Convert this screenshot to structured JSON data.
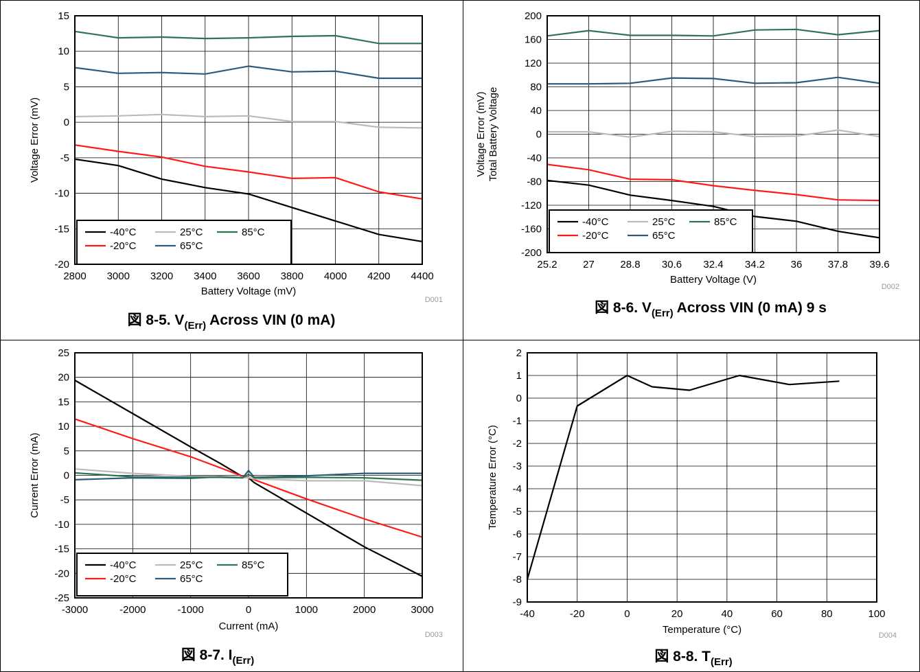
{
  "chart_data": [
    {
      "type": "line",
      "caption_prefix": "図 8-5. V",
      "caption_sub": "(Err)",
      "caption_suffix": " Across VIN (0 mA)",
      "code": "D001",
      "xlabel": "Battery Voltage (mV)",
      "ylabel": [
        "Voltage Error (mV)"
      ],
      "xlim": [
        2800,
        4400
      ],
      "ylim": [
        -20,
        15
      ],
      "xticks": [
        2800,
        3000,
        3200,
        3400,
        3600,
        3800,
        4000,
        4200,
        4400
      ],
      "xtick_labels": [
        "2800",
        "3000",
        "3200",
        "3400",
        "3600",
        "3800",
        "4000",
        "4200",
        "4400"
      ],
      "yticks": [
        -20,
        -15,
        -10,
        -5,
        0,
        5,
        10,
        15
      ],
      "ytick_labels": [
        "-20",
        "-15",
        "-10",
        "-5",
        "0",
        "5",
        "10",
        "15"
      ],
      "grid": true,
      "legend_position": "bottom-left",
      "series": [
        {
          "name": "-40°C",
          "color": "#000000",
          "x": [
            2800,
            3000,
            3200,
            3400,
            3600,
            3800,
            4000,
            4200,
            4400
          ],
          "y": [
            -5.2,
            -6.1,
            -8.0,
            -9.2,
            -10.1,
            -12.0,
            -13.9,
            -15.8,
            -16.8
          ]
        },
        {
          "name": "-20°C",
          "color": "#ff1a1a",
          "x": [
            2800,
            3000,
            3200,
            3400,
            3600,
            3800,
            4000,
            4200,
            4400
          ],
          "y": [
            -3.2,
            -4.1,
            -4.9,
            -6.2,
            -7.0,
            -7.9,
            -7.8,
            -9.8,
            -10.8
          ]
        },
        {
          "name": "25°C",
          "color": "#bbbbbb",
          "x": [
            2800,
            3000,
            3200,
            3400,
            3600,
            3800,
            4000,
            4200,
            4400
          ],
          "y": [
            0.8,
            0.9,
            1.1,
            0.8,
            0.9,
            0.1,
            0.1,
            -0.7,
            -0.8
          ]
        },
        {
          "name": "65°C",
          "color": "#2e5b7c",
          "x": [
            2800,
            3000,
            3200,
            3400,
            3600,
            3800,
            4000,
            4200,
            4400
          ],
          "y": [
            7.7,
            6.9,
            7.0,
            6.8,
            7.9,
            7.1,
            7.2,
            6.2,
            6.2
          ]
        },
        {
          "name": "85°C",
          "color": "#2e7450",
          "x": [
            2800,
            3000,
            3200,
            3400,
            3600,
            3800,
            4000,
            4200,
            4400
          ],
          "y": [
            12.8,
            11.9,
            12.0,
            11.8,
            11.9,
            12.1,
            12.2,
            11.1,
            11.1
          ]
        }
      ]
    },
    {
      "type": "line",
      "caption_prefix": "図 8-6. V",
      "caption_sub": "(Err)",
      "caption_suffix": " Across VIN (0 mA) 9 s",
      "code": "D002",
      "xlabel": "Battery Voltage (V)",
      "ylabel": [
        "Voltage Error (mV)",
        "Total Battery Voltage"
      ],
      "xlim": [
        25.2,
        39.6
      ],
      "ylim": [
        -200,
        200
      ],
      "xticks": [
        25.2,
        27,
        28.8,
        30.6,
        32.4,
        34.2,
        36,
        37.8,
        39.6
      ],
      "xtick_labels": [
        "25.2",
        "27",
        "28.8",
        "30.6",
        "32.4",
        "34.2",
        "36",
        "37.8",
        "39.6"
      ],
      "yticks": [
        -200,
        -160,
        -120,
        -80,
        -40,
        0,
        40,
        80,
        120,
        160,
        200
      ],
      "ytick_labels": [
        "-200",
        "-160",
        "-120",
        "-80",
        "-40",
        "0",
        "40",
        "80",
        "120",
        "160",
        "200"
      ],
      "grid": true,
      "legend_position": "bottom-left",
      "series": [
        {
          "name": "-40°C",
          "color": "#000000",
          "x": [
            25.2,
            27,
            28.8,
            30.6,
            32.4,
            34.2,
            36,
            37.8,
            39.6
          ],
          "y": [
            -78,
            -86,
            -103,
            -112,
            -122,
            -139,
            -147,
            -164,
            -175
          ]
        },
        {
          "name": "-20°C",
          "color": "#ff1a1a",
          "x": [
            25.2,
            27,
            28.8,
            30.6,
            32.4,
            34.2,
            36,
            37.8,
            39.6
          ],
          "y": [
            -51,
            -60,
            -76,
            -77,
            -87,
            -95,
            -102,
            -111,
            -112
          ]
        },
        {
          "name": "25°C",
          "color": "#bbbbbb",
          "x": [
            25.2,
            27,
            28.8,
            30.6,
            32.4,
            34.2,
            36,
            37.8,
            39.6
          ],
          "y": [
            4,
            4,
            -5,
            5,
            4,
            -4,
            -3,
            7,
            -4
          ]
        },
        {
          "name": "65°C",
          "color": "#2e5b7c",
          "x": [
            25.2,
            27,
            28.8,
            30.6,
            32.4,
            34.2,
            36,
            37.8,
            39.6
          ],
          "y": [
            85,
            85,
            86,
            95,
            94,
            86,
            87,
            96,
            86
          ]
        },
        {
          "name": "85°C",
          "color": "#2e7450",
          "x": [
            25.2,
            27,
            28.8,
            30.6,
            32.4,
            34.2,
            36,
            37.8,
            39.6
          ],
          "y": [
            166,
            175,
            167,
            167,
            166,
            176,
            177,
            168,
            175
          ]
        }
      ]
    },
    {
      "type": "line",
      "caption_prefix": "図 8-7. I",
      "caption_sub": "(Err)",
      "caption_suffix": "",
      "code": "D003",
      "xlabel": "Current (mA)",
      "ylabel": [
        "Current Error (mA)"
      ],
      "xlim": [
        -3000,
        3000
      ],
      "ylim": [
        -25,
        25
      ],
      "xticks": [
        -3000,
        -2000,
        -1000,
        0,
        1000,
        2000,
        3000
      ],
      "xtick_labels": [
        "-3000",
        "-2000",
        "-1000",
        "0",
        "1000",
        "2000",
        "3000"
      ],
      "yticks": [
        -25,
        -20,
        -15,
        -10,
        -5,
        0,
        5,
        10,
        15,
        20,
        25
      ],
      "ytick_labels": [
        "-25",
        "-20",
        "-15",
        "-10",
        "-5",
        "0",
        "5",
        "10",
        "15",
        "20",
        "25"
      ],
      "grid": true,
      "legend_position": "bottom-left",
      "series": [
        {
          "name": "-40°C",
          "color": "#000000",
          "x": [
            -3000,
            -2000,
            -1000,
            -500,
            -100,
            0,
            100,
            2000,
            3000
          ],
          "y": [
            19.4,
            12.6,
            5.8,
            2.5,
            -0.3,
            -0.5,
            -1.5,
            -14.6,
            -20.6
          ]
        },
        {
          "name": "-20°C",
          "color": "#ff1a1a",
          "x": [
            -3000,
            -2000,
            -1000,
            -500,
            -100,
            0,
            100,
            1000,
            2000,
            3000
          ],
          "y": [
            11.5,
            7.5,
            3.8,
            1.6,
            -0.2,
            -0.4,
            -0.9,
            -4.8,
            -8.9,
            -12.6
          ]
        },
        {
          "name": "25°C",
          "color": "#bbbbbb",
          "x": [
            -3000,
            -2000,
            -1000,
            -500,
            -100,
            0,
            100,
            1000,
            2000,
            3000
          ],
          "y": [
            1.3,
            0.4,
            -0.2,
            -0.3,
            -0.4,
            -0.5,
            -0.7,
            -1.1,
            -1.1,
            -2.1
          ]
        },
        {
          "name": "65°C",
          "color": "#2e5b7c",
          "x": [
            -3000,
            -2000,
            -1000,
            -500,
            -100,
            0,
            100,
            1000,
            2000,
            3000
          ],
          "y": [
            -0.9,
            -0.5,
            -0.6,
            -0.3,
            -0.5,
            1.0,
            -0.4,
            -0.1,
            0.4,
            0.4
          ]
        },
        {
          "name": "85°C",
          "color": "#2e7450",
          "x": [
            -3000,
            -2000,
            -1000,
            -500,
            -100,
            0,
            100,
            1000,
            2000,
            3000
          ],
          "y": [
            0.5,
            -0.3,
            -0.4,
            -0.4,
            -0.5,
            0.2,
            -0.5,
            -0.4,
            -0.5,
            -1.0
          ]
        }
      ]
    },
    {
      "type": "line",
      "caption_prefix": "図 8-8. T",
      "caption_sub": "(Err)",
      "caption_suffix": "",
      "code": "D004",
      "xlabel": "Temperature (°C)",
      "ylabel": [
        "Temperature Error (°C)"
      ],
      "xlim": [
        -40,
        100
      ],
      "ylim": [
        -9,
        2
      ],
      "xticks": [
        -40,
        -20,
        0,
        20,
        40,
        60,
        80,
        100
      ],
      "xtick_labels": [
        "-40",
        "-20",
        "0",
        "20",
        "40",
        "60",
        "80",
        "100"
      ],
      "yticks": [
        -9,
        -8,
        -7,
        -6,
        -5,
        -4,
        -3,
        -2,
        -1,
        0,
        1,
        2
      ],
      "ytick_labels": [
        "-9",
        "-8",
        "-7",
        "-6",
        "-5",
        "-4",
        "-3",
        "-2",
        "-1",
        "0",
        "1",
        "2"
      ],
      "grid": true,
      "series": [
        {
          "color": "#000000",
          "x": [
            -40,
            -20,
            0,
            10,
            25,
            45,
            65,
            85
          ],
          "y": [
            -8.0,
            -0.35,
            1.0,
            0.5,
            0.35,
            1.0,
            0.6,
            0.75
          ]
        }
      ]
    }
  ]
}
